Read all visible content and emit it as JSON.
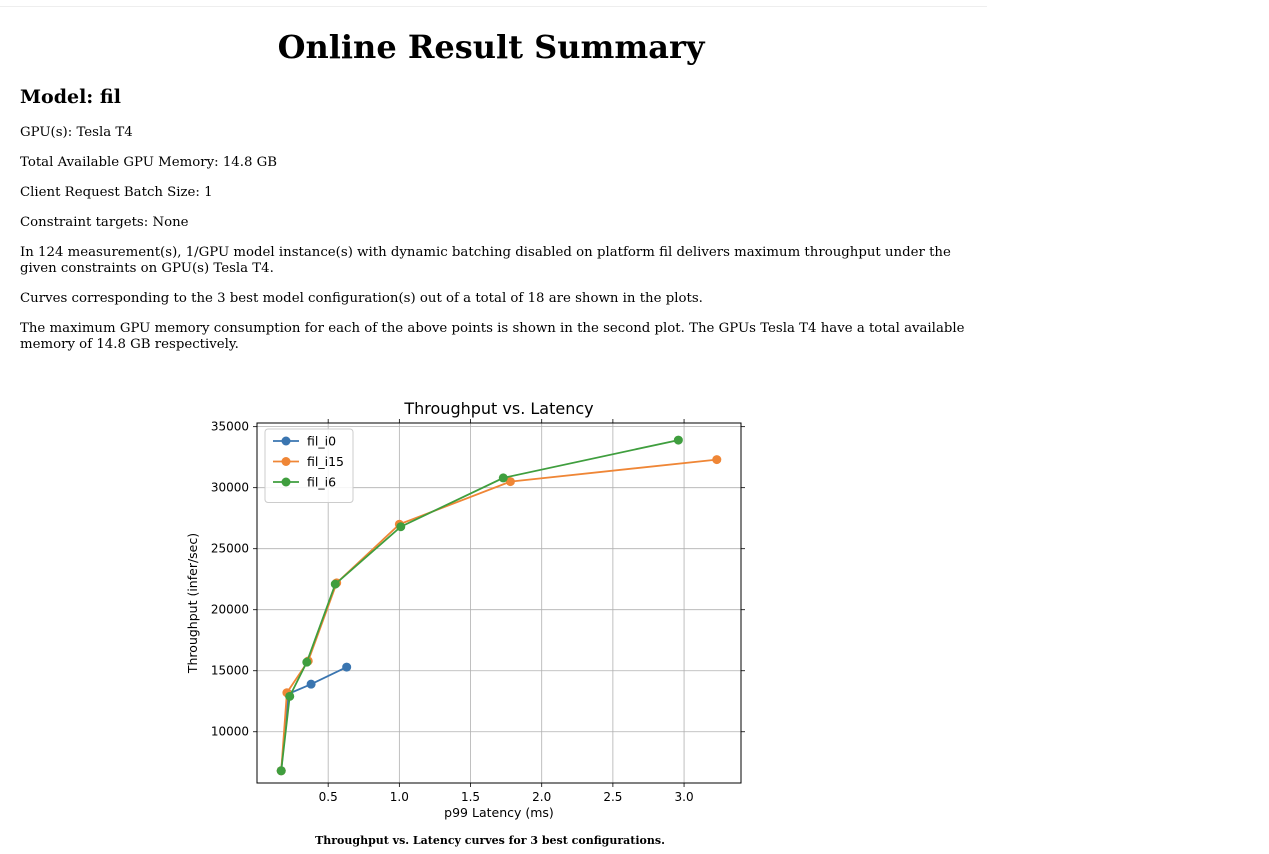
{
  "page": {
    "title": "Online Result Summary",
    "model_heading": "Model: fil",
    "gpus_line": "GPU(s): Tesla T4",
    "memory_line": "Total Available GPU Memory: 14.8 GB",
    "batch_line": "Client Request Batch Size: 1",
    "constraints_line": "Constraint targets: None",
    "summary_paragraph": "In 124 measurement(s), 1/GPU model instance(s) with dynamic batching disabled on platform fil delivers maximum throughput under the given constraints on GPU(s) Tesla T4.",
    "curves_paragraph": "Curves corresponding to the 3 best model configuration(s) out of a total of 18 are shown in the plots.",
    "memory_paragraph": "The maximum GPU memory consumption for each of the above points is shown in the second plot. The GPUs Tesla T4 have a total available memory of 14.8 GB respectively.",
    "figure_caption": "Throughput vs. Latency curves for 3 best configurations."
  },
  "chart_data": {
    "type": "line",
    "title": "Throughput vs. Latency",
    "xlabel": "p99 Latency (ms)",
    "ylabel": "Throughput (infer/sec)",
    "xlim": [
      0.0,
      3.4
    ],
    "ylim": [
      5800,
      35300
    ],
    "xticks": [
      0.5,
      1.0,
      1.5,
      2.0,
      2.5,
      3.0
    ],
    "xtick_labels": [
      "0.5",
      "1.0",
      "1.5",
      "2.0",
      "2.5",
      "3.0"
    ],
    "yticks": [
      10000,
      15000,
      20000,
      25000,
      30000,
      35000
    ],
    "ytick_labels": [
      "10000",
      "15000",
      "20000",
      "25000",
      "30000",
      "35000"
    ],
    "grid": true,
    "legend_position": "top-left",
    "series": [
      {
        "name": "fil_i0",
        "color": "#3a75b0",
        "x": [
          0.17,
          0.22,
          0.38,
          0.63
        ],
        "y": [
          6800,
          13100,
          13900,
          15300
        ]
      },
      {
        "name": "fil_i15",
        "color": "#ef8636",
        "x": [
          0.17,
          0.21,
          0.36,
          0.56,
          1.0,
          1.78,
          3.23
        ],
        "y": [
          6800,
          13200,
          15800,
          22200,
          27000,
          30500,
          32300
        ]
      },
      {
        "name": "fil_i6",
        "color": "#3f9e3e",
        "x": [
          0.17,
          0.23,
          0.35,
          0.55,
          1.01,
          1.73,
          2.96
        ],
        "y": [
          6800,
          12900,
          15700,
          22100,
          26800,
          30800,
          33900
        ]
      }
    ]
  }
}
